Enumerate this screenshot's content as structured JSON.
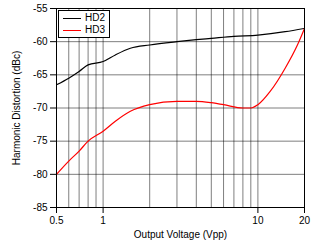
{
  "chart_data": {
    "type": "line",
    "x_label": "Output Voltage (Vpp)",
    "y_label": "Harmonic Distortion (dBc)",
    "log": "x",
    "grid": true,
    "legend": "top-left",
    "xlim": [
      0.5,
      20
    ],
    "xticks": [
      0.5,
      1,
      10,
      20
    ],
    "ylim": [
      -85,
      -55
    ],
    "yticks": [
      -85,
      -80,
      -75,
      -70,
      -65,
      -60,
      -55
    ],
    "series": [
      {
        "name": "HD2",
        "color": "#000000",
        "x": [
          0.5,
          0.6,
          0.7,
          0.8,
          1,
          1.2,
          1.5,
          2,
          3,
          4,
          5,
          7,
          10,
          15,
          20
        ],
        "values": [
          -66.5,
          -65.5,
          -64.5,
          -63.5,
          -63,
          -62,
          -61,
          -60.5,
          -60,
          -59.7,
          -59.5,
          -59.2,
          -59,
          -58.5,
          -58
        ]
      },
      {
        "name": "HD3",
        "color": "#ff0000",
        "x": [
          0.5,
          0.6,
          0.7,
          0.8,
          1,
          1.2,
          1.5,
          2,
          3,
          4,
          5,
          6,
          8,
          9,
          10,
          12,
          15,
          18,
          20
        ],
        "values": [
          -80,
          -78,
          -76.5,
          -75,
          -73.5,
          -72,
          -70.5,
          -69.5,
          -69,
          -69,
          -69.2,
          -69.5,
          -70,
          -70,
          -69.5,
          -67.5,
          -64,
          -60.5,
          -58
        ]
      }
    ]
  }
}
